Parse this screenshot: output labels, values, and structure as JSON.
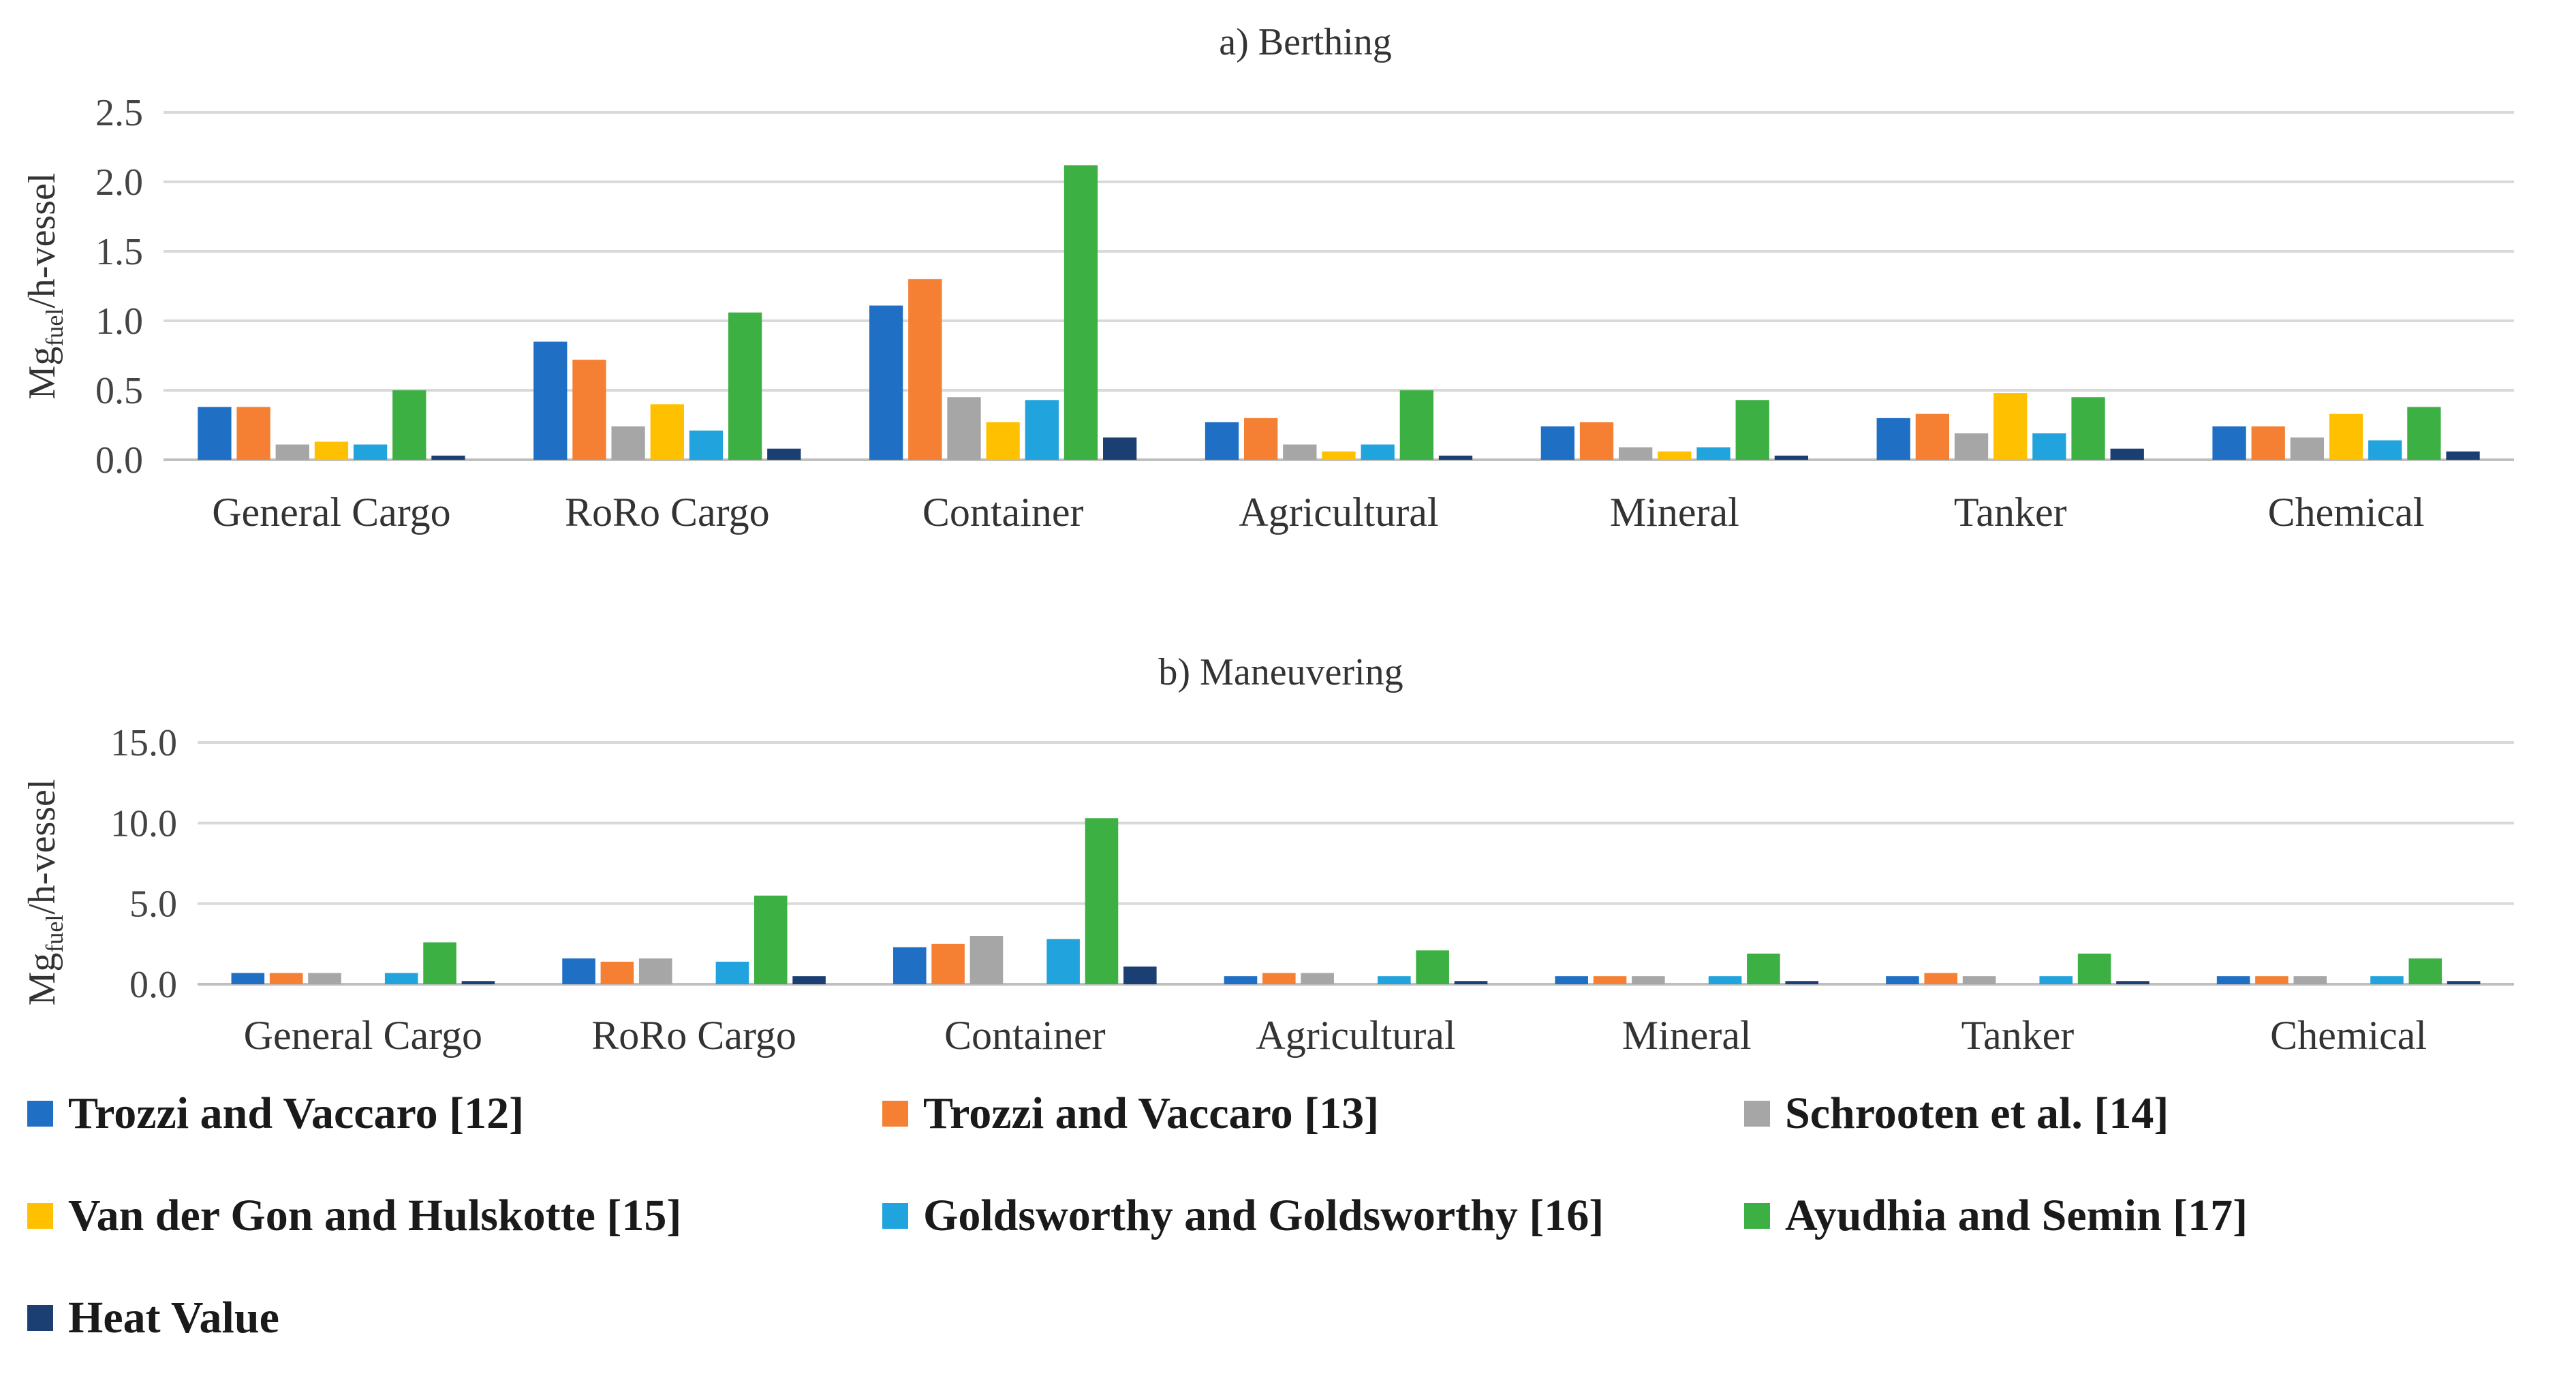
{
  "chart_data": [
    {
      "type": "bar",
      "title": "a) Berthing",
      "ylabel": {
        "main": "Mg",
        "sub": "fuel",
        "rest": "/h-vessel"
      },
      "ylim": [
        0,
        2.5
      ],
      "yticks": [
        "0.0",
        "0.5",
        "1.0",
        "1.5",
        "2.0",
        "2.5"
      ],
      "ytick_values": [
        0,
        0.5,
        1.0,
        1.5,
        2.0,
        2.5
      ],
      "grid": true,
      "categories": [
        "General Cargo",
        "RoRo Cargo",
        "Container",
        "Agricultural",
        "Mineral",
        "Tanker",
        "Chemical"
      ],
      "series": [
        {
          "name": "Trozzi and Vaccaro [12]",
          "values": [
            0.38,
            0.85,
            1.11,
            0.27,
            0.24,
            0.3,
            0.24
          ]
        },
        {
          "name": "Trozzi and Vaccaro [13]",
          "values": [
            0.38,
            0.72,
            1.3,
            0.3,
            0.27,
            0.33,
            0.24
          ]
        },
        {
          "name": "Schrooten et al. [14]",
          "values": [
            0.11,
            0.24,
            0.45,
            0.11,
            0.09,
            0.19,
            0.16
          ]
        },
        {
          "name": "Van der Gon and Hulskotte [15]",
          "values": [
            0.13,
            0.4,
            0.27,
            0.06,
            0.06,
            0.48,
            0.33
          ]
        },
        {
          "name": "Goldsworthy and Goldsworthy [16]",
          "values": [
            0.11,
            0.21,
            0.43,
            0.11,
            0.09,
            0.19,
            0.14
          ]
        },
        {
          "name": "Ayudhia and Semin [17]",
          "values": [
            0.5,
            1.06,
            2.12,
            0.5,
            0.43,
            0.45,
            0.38
          ]
        },
        {
          "name": "Heat Value",
          "values": [
            0.03,
            0.08,
            0.16,
            0.03,
            0.03,
            0.08,
            0.06
          ]
        }
      ]
    },
    {
      "type": "bar",
      "title": "b) Maneuvering",
      "ylabel": {
        "main": "Mg",
        "sub": "fuel",
        "rest": "/h-vessel"
      },
      "ylim": [
        0,
        15
      ],
      "yticks": [
        "0.0",
        "5.0",
        "10.0",
        "15.0"
      ],
      "ytick_values": [
        0,
        5,
        10,
        15
      ],
      "grid": true,
      "categories": [
        "General Cargo",
        "RoRo Cargo",
        "Container",
        "Agricultural",
        "Mineral",
        "Tanker",
        "Chemical"
      ],
      "series": [
        {
          "name": "Trozzi and Vaccaro [12]",
          "values": [
            0.7,
            1.6,
            2.3,
            0.5,
            0.5,
            0.5,
            0.5
          ]
        },
        {
          "name": "Trozzi and Vaccaro [13]",
          "values": [
            0.7,
            1.4,
            2.5,
            0.7,
            0.5,
            0.7,
            0.5
          ]
        },
        {
          "name": "Schrooten et al. [14]",
          "values": [
            0.7,
            1.6,
            3.0,
            0.7,
            0.5,
            0.5,
            0.5
          ]
        },
        {
          "name": "Van der Gon and Hulskotte [15]",
          "values": [
            0,
            0,
            0,
            0,
            0,
            0,
            0
          ]
        },
        {
          "name": "Goldsworthy and Goldsworthy [16]",
          "values": [
            0.7,
            1.4,
            2.8,
            0.5,
            0.5,
            0.5,
            0.5
          ]
        },
        {
          "name": "Ayudhia and Semin [17]",
          "values": [
            2.6,
            5.5,
            10.3,
            2.1,
            1.9,
            1.9,
            1.6
          ]
        },
        {
          "name": "Heat Value",
          "values": [
            0.2,
            0.5,
            1.1,
            0.2,
            0.2,
            0.2,
            0.2
          ]
        }
      ]
    }
  ],
  "legend": [
    {
      "label": "Trozzi and Vaccaro [12]",
      "color": "#1f6fc5"
    },
    {
      "label": "Trozzi and Vaccaro [13]",
      "color": "#f57f32"
    },
    {
      "label": "Schrooten et al. [14]",
      "color": "#a6a6a6"
    },
    {
      "label": "Van der Gon and Hulskotte [15]",
      "color": "#ffc000"
    },
    {
      "label": "Goldsworthy and Goldsworthy [16]",
      "color": "#21a3dd"
    },
    {
      "label": "Ayudhia and Semin [17]",
      "color": "#3cb043"
    },
    {
      "label": "Heat Value",
      "color": "#1b3f73"
    }
  ]
}
